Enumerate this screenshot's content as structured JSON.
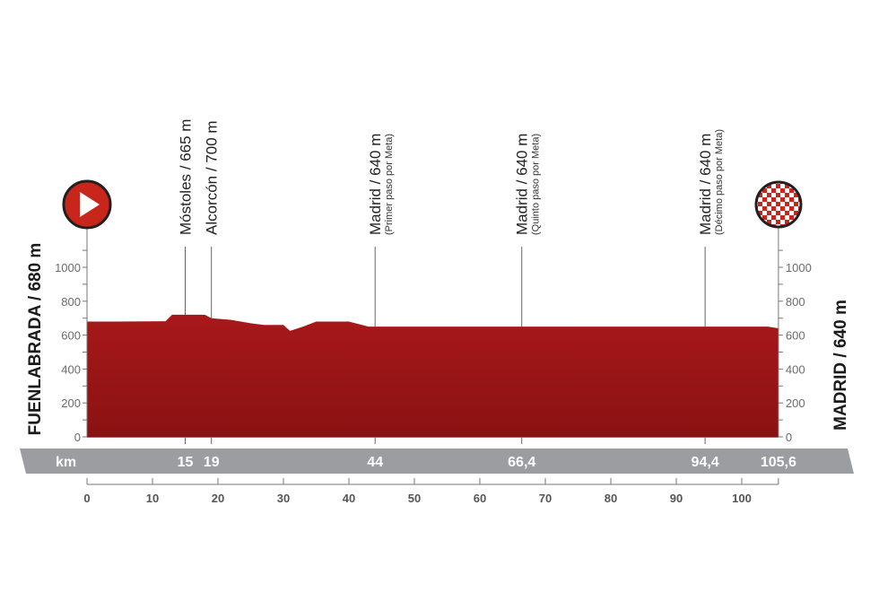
{
  "chart_data": {
    "type": "area",
    "title": "",
    "xlabel": "km",
    "ylabel": "",
    "xlim": [
      0,
      105.6
    ],
    "ylim": [
      0,
      1000
    ],
    "x_ticks": [
      0,
      10,
      20,
      30,
      40,
      50,
      60,
      70,
      80,
      90,
      100
    ],
    "y_ticks": [
      0,
      200,
      400,
      600,
      800,
      1000
    ],
    "grid": false,
    "colors": {
      "profile": "#9e1614",
      "profile_dark": "#6e0d0c",
      "band": "#9b9da1",
      "start": "#c8261b"
    },
    "profile": {
      "x": [
        0,
        4,
        12,
        13,
        18,
        19,
        22,
        25,
        27,
        30,
        31,
        33,
        35,
        40,
        43,
        60,
        104,
        105.6
      ],
      "y": [
        680,
        680,
        682,
        720,
        720,
        700,
        690,
        670,
        660,
        660,
        625,
        650,
        680,
        680,
        650,
        650,
        650,
        640
      ]
    },
    "start": {
      "label": "FUENLABRADA / 680 m",
      "icon": "play-icon"
    },
    "finish": {
      "label": "MADRID / 640 m",
      "icon": "checkered-flag-icon"
    },
    "waypoints": [
      {
        "km": 15,
        "km_label": "15",
        "name": "Móstoles / 665 m",
        "note": ""
      },
      {
        "km": 19,
        "km_label": "19",
        "name": "Alcorcón / 700 m",
        "note": ""
      },
      {
        "km": 44,
        "km_label": "44",
        "name": "Madrid / 640 m",
        "note": "(Primer paso por Meta)"
      },
      {
        "km": 66.4,
        "km_label": "66,4",
        "name": "Madrid / 640 m",
        "note": "(Quinto paso por Meta)"
      },
      {
        "km": 94.4,
        "km_label": "94,4",
        "name": "Madrid / 640 m",
        "note": "(Décimo paso por Meta)"
      },
      {
        "km": 105.6,
        "km_label": "105,6",
        "name": "",
        "note": ""
      }
    ],
    "band_unit": "km"
  }
}
